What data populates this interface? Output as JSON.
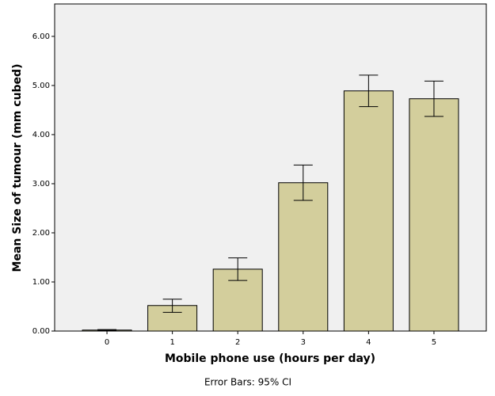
{
  "chart_data": {
    "type": "bar",
    "x_label": "Mobile phone use (hours per day)",
    "y_label": "Mean Size of tumour (mm cubed)",
    "footnote": "Error Bars: 95% CI",
    "categories": [
      "0",
      "1",
      "2",
      "3",
      "4",
      "5"
    ],
    "values": [
      0.02,
      0.52,
      1.26,
      3.02,
      4.89,
      4.73
    ],
    "ci_lower": [
      0.01,
      0.38,
      1.03,
      2.66,
      4.57,
      4.37
    ],
    "ci_upper": [
      0.03,
      0.65,
      1.49,
      3.38,
      5.21,
      5.09
    ],
    "color": "#d3ce9c",
    "ylim": [
      0,
      6.66
    ],
    "yticks": [
      {
        "value": 0,
        "label": "0.00"
      },
      {
        "value": 1,
        "label": "1.00"
      },
      {
        "value": 2,
        "label": "2.00"
      },
      {
        "value": 3,
        "label": "3.00"
      },
      {
        "value": 4,
        "label": "4.00"
      },
      {
        "value": 5,
        "label": "5.00"
      },
      {
        "value": 6,
        "label": "6.00"
      }
    ],
    "grid": false
  }
}
